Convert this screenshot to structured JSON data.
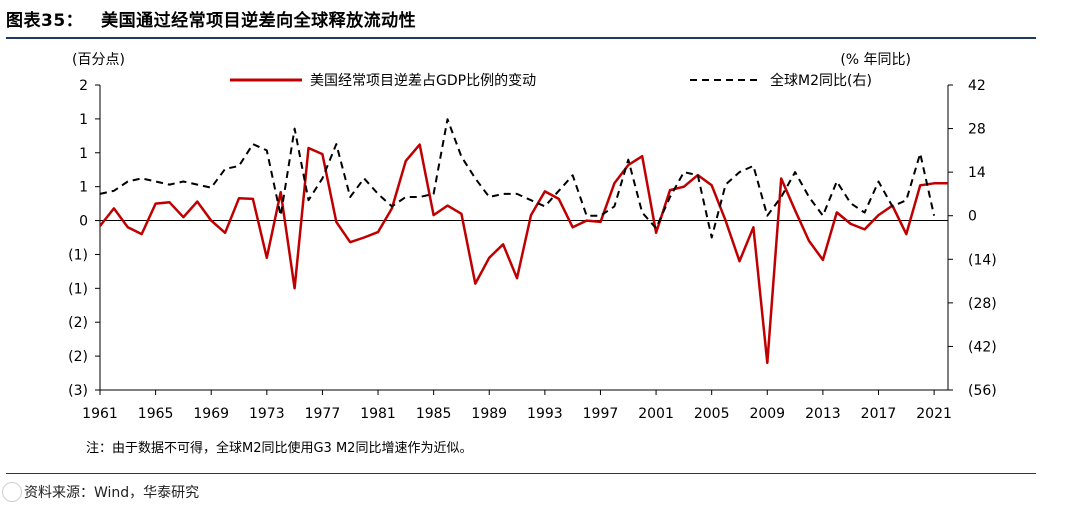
{
  "figure": {
    "number": "图表35：",
    "title": "美国通过经常项目逆差向全球释放流动性",
    "note": "注：由于数据不可得，全球M2同比使用G3 M2同比增速作为近似。",
    "source": "资料来源：Wind，华泰研究"
  },
  "chart_data": {
    "type": "line",
    "left_unit": "(百分点)",
    "right_unit": "(% 年同比)",
    "left_ticks": [
      "2",
      "1",
      "1",
      "1",
      "0",
      "(1)",
      "(1)",
      "(2)",
      "(2)",
      "(3)"
    ],
    "left_range": [
      -2.5,
      2
    ],
    "right_ticks": [
      "42",
      "28",
      "14",
      "0",
      "(14)",
      "(28)",
      "(42)",
      "(56)"
    ],
    "right_range": [
      -56,
      42
    ],
    "x_ticks": [
      "1961",
      "1965",
      "1969",
      "1973",
      "1977",
      "1981",
      "1985",
      "1989",
      "1993",
      "1997",
      "2001",
      "2005",
      "2009",
      "2013",
      "2017",
      "2021"
    ],
    "x_range": [
      1961,
      2022
    ],
    "legend_position": "top",
    "series": [
      {
        "name": "美国经常项目逆差占GDP比例的变动",
        "axis": "left",
        "color": "#c00000",
        "style": "solid",
        "x": [
          1961,
          1962,
          1963,
          1964,
          1965,
          1966,
          1967,
          1968,
          1969,
          1970,
          1971,
          1972,
          1973,
          1974,
          1975,
          1976,
          1977,
          1978,
          1979,
          1980,
          1981,
          1982,
          1983,
          1984,
          1985,
          1986,
          1987,
          1988,
          1989,
          1990,
          1991,
          1992,
          1993,
          1994,
          1995,
          1996,
          1997,
          1998,
          1999,
          2000,
          2001,
          2002,
          2003,
          2004,
          2005,
          2006,
          2007,
          2008,
          2009,
          2010,
          2011,
          2012,
          2013,
          2014,
          2015,
          2016,
          2017,
          2018,
          2019,
          2020,
          2021,
          2022
        ],
        "y": [
          -0.08,
          0.18,
          -0.1,
          -0.2,
          0.25,
          0.27,
          0.05,
          0.28,
          0.0,
          -0.18,
          0.33,
          0.32,
          -0.55,
          0.42,
          -1.0,
          1.07,
          0.98,
          -0.02,
          -0.32,
          -0.25,
          -0.17,
          0.18,
          0.88,
          1.12,
          0.08,
          0.22,
          0.1,
          -0.93,
          -0.55,
          -0.35,
          -0.85,
          0.08,
          0.43,
          0.32,
          -0.1,
          0.0,
          -0.02,
          0.55,
          0.82,
          0.95,
          -0.18,
          0.45,
          0.5,
          0.67,
          0.52,
          0.0,
          -0.6,
          -0.1,
          -2.1,
          0.62,
          0.15,
          -0.3,
          -0.58,
          0.12,
          -0.05,
          -0.13,
          0.08,
          0.22,
          -0.2,
          0.52,
          0.55,
          0.55
        ]
      },
      {
        "name": "全球M2同比(右)",
        "axis": "right",
        "color": "#000000",
        "style": "dashed",
        "x": [
          1961,
          1962,
          1963,
          1964,
          1965,
          1966,
          1967,
          1968,
          1969,
          1970,
          1971,
          1972,
          1973,
          1974,
          1975,
          1976,
          1977,
          1978,
          1979,
          1980,
          1981,
          1982,
          1983,
          1984,
          1985,
          1986,
          1987,
          1988,
          1989,
          1990,
          1991,
          1992,
          1993,
          1994,
          1995,
          1996,
          1997,
          1998,
          1999,
          2000,
          2001,
          2002,
          2003,
          2004,
          2005,
          2006,
          2007,
          2008,
          2009,
          2010,
          2011,
          2012,
          2013,
          2014,
          2015,
          2016,
          2017,
          2018,
          2019,
          2020,
          2021
        ],
        "y": [
          7,
          8,
          11,
          12,
          11,
          10,
          11,
          10,
          9,
          15,
          16,
          23,
          21,
          0,
          28,
          5,
          12,
          23,
          6,
          12,
          7,
          3,
          6,
          6,
          7,
          31,
          19,
          12,
          6,
          7,
          7,
          5,
          3,
          8,
          13,
          0,
          0,
          3,
          18,
          1,
          -4,
          6,
          14,
          13,
          -7,
          10,
          14,
          16,
          0,
          6,
          14,
          6,
          0,
          11,
          4,
          1,
          11,
          3,
          5,
          20,
          0
        ]
      }
    ]
  }
}
